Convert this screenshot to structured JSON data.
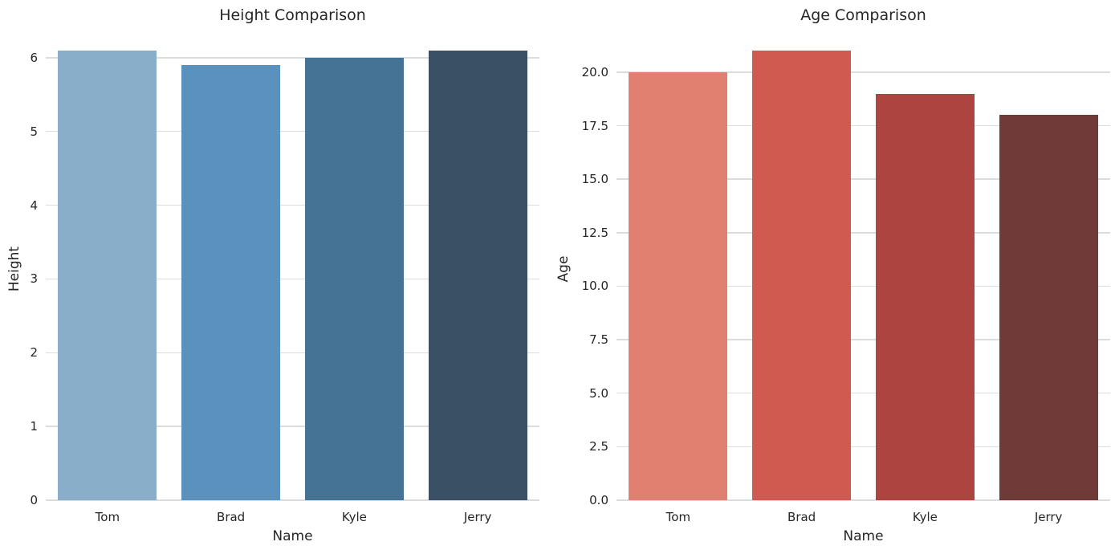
{
  "figure": {
    "background": "#ffffff",
    "grid_color": "#dcdcdc",
    "text_color": "#262626"
  },
  "chart_data": [
    {
      "type": "bar",
      "title": "Height Comparison",
      "xlabel": "Name",
      "ylabel": "Height",
      "categories": [
        "Tom",
        "Brad",
        "Kyle",
        "Jerry"
      ],
      "values": [
        6.1,
        5.9,
        6.0,
        6.1
      ],
      "bar_colors": [
        "#88aeca",
        "#5b92bd",
        "#447396",
        "#3a5065"
      ],
      "yticks": [
        0,
        1,
        2,
        3,
        4,
        5,
        6
      ],
      "ytick_labels": [
        "0",
        "1",
        "2",
        "3",
        "4",
        "5",
        "6"
      ],
      "ylim": [
        0,
        6.27
      ],
      "grid": "horizontal",
      "legend": "none"
    },
    {
      "type": "bar",
      "title": "Age Comparison",
      "xlabel": "Name",
      "ylabel": "Age",
      "categories": [
        "Tom",
        "Brad",
        "Kyle",
        "Jerry"
      ],
      "values": [
        20,
        21,
        19,
        18
      ],
      "bar_colors": [
        "#df8070",
        "#d05a50",
        "#ae4440",
        "#6f3a37"
      ],
      "yticks": [
        0,
        2.5,
        5,
        7.5,
        10,
        12.5,
        15,
        17.5,
        20
      ],
      "ytick_labels": [
        "0.0",
        "2.5",
        "5.0",
        "7.5",
        "10.0",
        "12.5",
        "15.0",
        "17.5",
        "20.0"
      ],
      "ylim": [
        0,
        21.61
      ],
      "grid": "horizontal",
      "legend": "none"
    }
  ]
}
